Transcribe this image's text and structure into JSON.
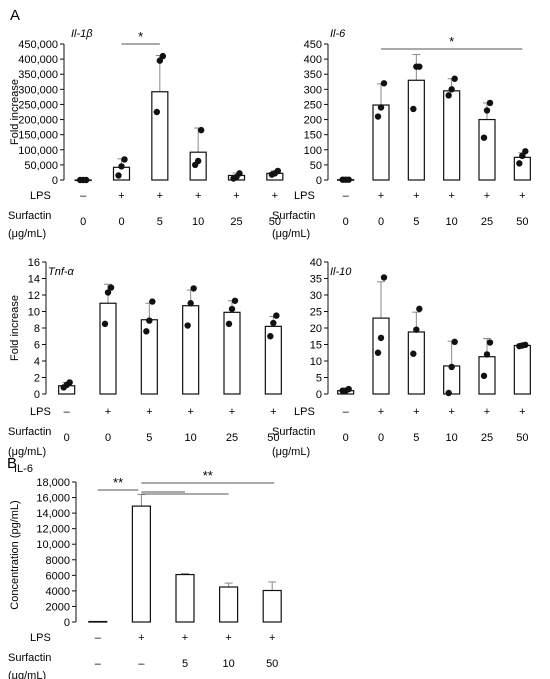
{
  "panels": {
    "a": "A",
    "b": "B"
  },
  "lps_label": "LPS",
  "surfactin_label": [
    "Surfactin",
    "(μg/mL)"
  ],
  "chart_data": [
    {
      "type": "bar",
      "panel": "A",
      "title": "Il-1β",
      "ylabel": "Fold increase",
      "ylim": [
        0,
        450000
      ],
      "yticks": [
        "0",
        "50,000",
        "100,000",
        "150,000",
        "200,000",
        "250,000",
        "300,000",
        "350,000",
        "400,000",
        "450,000"
      ],
      "lps": [
        "–",
        "+",
        "+",
        "+",
        "+",
        "+"
      ],
      "surfactin": [
        "0",
        "0",
        "5",
        "10",
        "25",
        "50"
      ],
      "values": [
        1,
        42000,
        292000,
        92000,
        15000,
        22000
      ],
      "errors": [
        0,
        28000,
        120000,
        80000,
        8000,
        8000
      ],
      "points": [
        [
          1,
          1,
          1
        ],
        [
          15000,
          45000,
          68000
        ],
        [
          225000,
          395000,
          410000
        ],
        [
          50000,
          63000,
          165000
        ],
        [
          5000,
          10000,
          22000
        ],
        [
          18000,
          22000,
          30000
        ]
      ],
      "significance": [
        {
          "from": 1,
          "to": 2,
          "label": "*"
        }
      ]
    },
    {
      "type": "bar",
      "panel": "A",
      "title": "Il-6",
      "ylabel": "",
      "ylim": [
        0,
        450
      ],
      "yticks": [
        "0",
        "50",
        "100",
        "150",
        "200",
        "250",
        "300",
        "350",
        "400",
        "450"
      ],
      "lps": [
        "–",
        "+",
        "+",
        "+",
        "+",
        "+"
      ],
      "surfactin": [
        "0",
        "0",
        "5",
        "10",
        "25",
        "50"
      ],
      "values": [
        1,
        248,
        330,
        295,
        200,
        75
      ],
      "errors": [
        0,
        70,
        85,
        40,
        55,
        15
      ],
      "points": [
        [
          1,
          1,
          1
        ],
        [
          210,
          240,
          320
        ],
        [
          235,
          375,
          375
        ],
        [
          280,
          300,
          335
        ],
        [
          140,
          230,
          255
        ],
        [
          55,
          80,
          95
        ]
      ],
      "significance": [
        {
          "from": 1,
          "to": 5,
          "label": "*"
        }
      ]
    },
    {
      "type": "bar",
      "panel": "A",
      "title": "Tnf-α",
      "ylabel": "Fold increase",
      "ylim": [
        0,
        16
      ],
      "yticks": [
        "0",
        "2",
        "4",
        "6",
        "8",
        "10",
        "12",
        "14",
        "16"
      ],
      "lps": [
        "–",
        "+",
        "+",
        "+",
        "+",
        "+"
      ],
      "surfactin": [
        "0",
        "0",
        "5",
        "10",
        "25",
        "50"
      ],
      "values": [
        1,
        11,
        9,
        10.7,
        9.9,
        8.2
      ],
      "errors": [
        0.4,
        2.3,
        2.0,
        1.9,
        1.4,
        1.2
      ],
      "points": [
        [
          0.8,
          1.1,
          1.4
        ],
        [
          8.5,
          12.3,
          12.9
        ],
        [
          7.6,
          8.9,
          11.2
        ],
        [
          8.3,
          11,
          12.8
        ],
        [
          8.5,
          10.3,
          11.3
        ],
        [
          7,
          8.6,
          9.5
        ]
      ],
      "significance": []
    },
    {
      "type": "bar",
      "panel": "A",
      "title": "Il-10",
      "ylabel": "",
      "ylim": [
        0,
        40
      ],
      "yticks": [
        "0",
        "5",
        "10",
        "15",
        "20",
        "25",
        "30",
        "35",
        "40"
      ],
      "lps": [
        "–",
        "+",
        "+",
        "+",
        "+",
        "+"
      ],
      "surfactin": [
        "0",
        "0",
        "5",
        "10",
        "25",
        "50"
      ],
      "values": [
        1,
        23,
        18.8,
        8.5,
        11.3,
        14.7
      ],
      "errors": [
        0.5,
        11,
        6,
        7.5,
        5.5,
        0.5
      ],
      "points": [
        [
          1,
          1,
          1.5
        ],
        [
          12.5,
          17,
          35.3
        ],
        [
          12.2,
          19.5,
          25.8
        ],
        [
          0.3,
          8.2,
          15.8
        ],
        [
          5.5,
          12,
          15.6
        ],
        [
          14.5,
          14.7,
          14.9
        ]
      ],
      "significance": []
    },
    {
      "type": "bar",
      "panel": "B",
      "title": "IL-6",
      "ylabel": "Concentration (pg/mL)",
      "ylim": [
        0,
        18000
      ],
      "yticks": [
        "0",
        "2000",
        "4000",
        "6000",
        "8000",
        "10,000",
        "12,000",
        "14,000",
        "16,000",
        "18,000"
      ],
      "lps": [
        "–",
        "+",
        "+",
        "+",
        "+"
      ],
      "surfactin": [
        "–",
        "–",
        "5",
        "10",
        "50"
      ],
      "values": [
        60,
        14900,
        6100,
        4500,
        4050
      ],
      "errors": [
        0,
        1500,
        120,
        500,
        1100
      ],
      "points": [],
      "significance": [
        {
          "from": 0,
          "to": 1,
          "label": "**"
        },
        {
          "from": 1,
          "to": 2,
          "label": ""
        },
        {
          "from": 1,
          "to": 3,
          "label": ""
        },
        {
          "from": 1,
          "to": 4,
          "label": "**"
        }
      ]
    }
  ]
}
